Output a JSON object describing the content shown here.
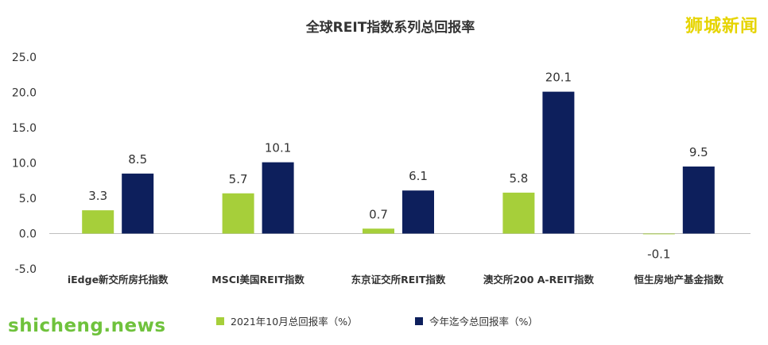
{
  "watermark_top": "狮城新闻",
  "watermark_bottom": "shicheng.news",
  "chart_data": {
    "type": "bar",
    "title": "全球REIT指数系列总回报率",
    "categories": [
      "iEdge新交所房托指数",
      "MSCI美国REIT指数",
      "东京证交所REIT指数",
      "澳交所200 A-REIT指数",
      "恒生房地产基金指数"
    ],
    "series": [
      {
        "name": "2021年10月总回报率（%）",
        "color": "#a6cf3a",
        "values": [
          3.3,
          5.7,
          0.7,
          5.8,
          -0.1
        ],
        "labels": [
          "3.3",
          "5.7",
          "0.7",
          "5.8",
          "-0.1"
        ]
      },
      {
        "name": "今年迄今总回报率（%）",
        "color": "#0d1f5c",
        "values": [
          8.5,
          10.1,
          6.1,
          20.1,
          9.5
        ],
        "labels": [
          "8.5",
          "10.1",
          "6.1",
          "20.1",
          "9.5"
        ]
      }
    ],
    "ylim": [
      -5,
      25
    ],
    "yticks": [
      "25.0",
      "20.0",
      "15.0",
      "10.0",
      "5.0",
      "0.0",
      "-5.0"
    ],
    "ytick_values": [
      25,
      20,
      15,
      10,
      5,
      0,
      -5
    ],
    "grid": false,
    "legend": "bottom"
  }
}
